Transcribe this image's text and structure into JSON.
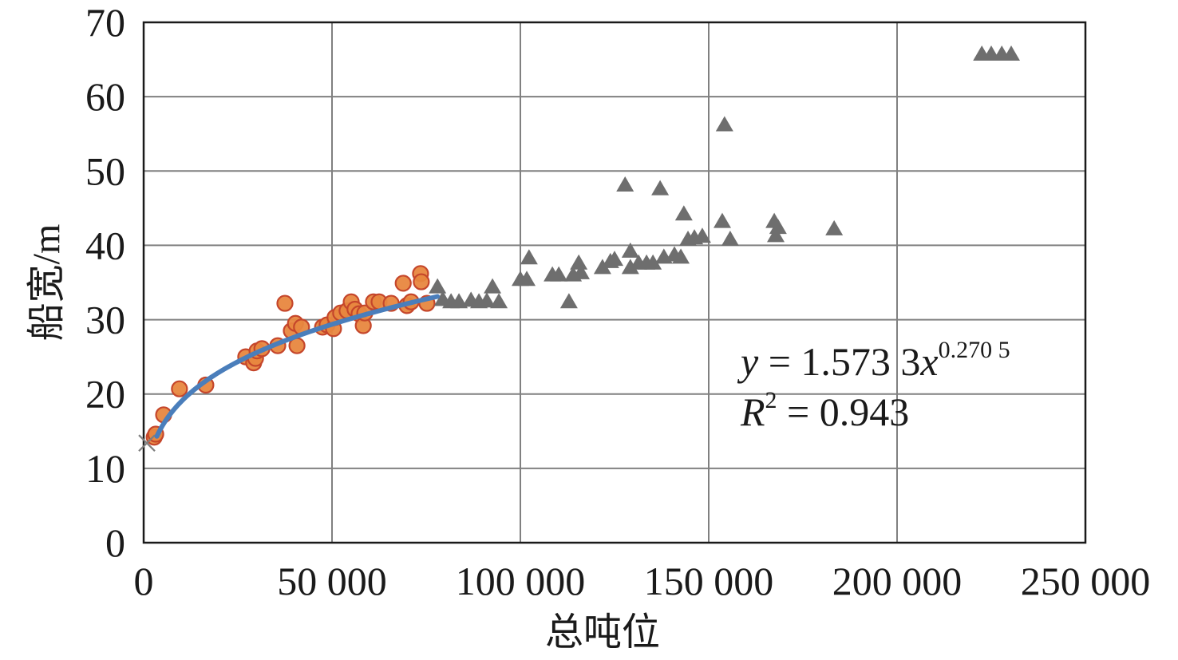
{
  "chart_data": {
    "type": "scatter",
    "xlabel": "总吨位",
    "ylabel": "船宽/m",
    "xlim": [
      0,
      250000
    ],
    "ylim": [
      0,
      70
    ],
    "x_ticks": [
      0,
      50000,
      100000,
      150000,
      200000,
      250000
    ],
    "x_tick_labels": [
      "0",
      "50 000",
      "100 000",
      "150 000",
      "200 000",
      "250 000"
    ],
    "y_ticks": [
      0,
      10,
      20,
      30,
      40,
      50,
      60,
      70
    ],
    "y_tick_labels": [
      "0",
      "10",
      "20",
      "30",
      "40",
      "50",
      "60",
      "70"
    ],
    "grid": true,
    "grid_color": "#808080",
    "series": [
      {
        "marker": "circle",
        "color": "#E8873F",
        "edge_color": "#C5462B",
        "points": [
          [
            2800,
            14.2
          ],
          [
            3200,
            14.6
          ],
          [
            5300,
            17.2
          ],
          [
            9500,
            20.7
          ],
          [
            16500,
            21.2
          ],
          [
            27100,
            25.0
          ],
          [
            29200,
            24.2
          ],
          [
            29700,
            24.8
          ],
          [
            30100,
            25.8
          ],
          [
            31400,
            26.1
          ],
          [
            35600,
            26.5
          ],
          [
            37500,
            32.2
          ],
          [
            39200,
            28.5
          ],
          [
            40300,
            29.5
          ],
          [
            40700,
            26.5
          ],
          [
            41900,
            29.0
          ],
          [
            47500,
            29.0
          ],
          [
            48700,
            29.3
          ],
          [
            50400,
            28.8
          ],
          [
            50800,
            30.3
          ],
          [
            52300,
            30.9
          ],
          [
            54000,
            31.2
          ],
          [
            55100,
            32.4
          ],
          [
            56100,
            31.4
          ],
          [
            57200,
            30.8
          ],
          [
            58300,
            29.2
          ],
          [
            58700,
            30.9
          ],
          [
            61000,
            32.4
          ],
          [
            62500,
            32.4
          ],
          [
            65700,
            32.2
          ],
          [
            68900,
            34.9
          ],
          [
            69900,
            31.9
          ],
          [
            71000,
            32.4
          ],
          [
            73500,
            36.2
          ],
          [
            73700,
            35.1
          ],
          [
            75200,
            32.2
          ]
        ]
      },
      {
        "marker": "triangle",
        "color": "#6E6E6E",
        "points": [
          [
            78000,
            34.4
          ],
          [
            79400,
            32.7
          ],
          [
            81600,
            32.4
          ],
          [
            83700,
            32.4
          ],
          [
            86900,
            32.6
          ],
          [
            89000,
            32.4
          ],
          [
            91100,
            32.5
          ],
          [
            92600,
            34.4
          ],
          [
            94300,
            32.4
          ],
          [
            100000,
            35.4
          ],
          [
            101700,
            35.4
          ],
          [
            102300,
            38.3
          ],
          [
            108500,
            36.0
          ],
          [
            110200,
            36.0
          ],
          [
            112900,
            32.4
          ],
          [
            114000,
            36.0
          ],
          [
            115500,
            37.6
          ],
          [
            116100,
            36.3
          ],
          [
            121800,
            37.0
          ],
          [
            123900,
            37.8
          ],
          [
            125000,
            38.1
          ],
          [
            127800,
            48.1
          ],
          [
            129200,
            39.2
          ],
          [
            129200,
            37.0
          ],
          [
            131400,
            37.6
          ],
          [
            133500,
            37.6
          ],
          [
            135200,
            37.6
          ],
          [
            137100,
            47.6
          ],
          [
            138100,
            38.4
          ],
          [
            140900,
            38.7
          ],
          [
            142600,
            38.4
          ],
          [
            143400,
            44.2
          ],
          [
            144500,
            40.8
          ],
          [
            146200,
            41.0
          ],
          [
            148300,
            41.2
          ],
          [
            153600,
            43.2
          ],
          [
            154200,
            56.2
          ],
          [
            155700,
            40.8
          ],
          [
            167400,
            43.2
          ],
          [
            167800,
            41.3
          ],
          [
            168400,
            42.4
          ],
          [
            183300,
            42.2
          ],
          [
            222500,
            65.7
          ],
          [
            225000,
            65.7
          ],
          [
            227800,
            65.7
          ],
          [
            230300,
            65.7
          ]
        ]
      },
      {
        "marker": "x",
        "color": "#7F7F7F",
        "points": [
          [
            850,
            13.4
          ]
        ]
      }
    ],
    "fit": {
      "type": "power",
      "a": 1.5733,
      "b": 0.2705,
      "x_range": [
        3500,
        78000
      ],
      "color": "#4A7EBB"
    },
    "annotation": {
      "equation": {
        "lhs": "y",
        "rhs": " = 1.573 3",
        "var": "x",
        "exp": "0.270 5"
      },
      "r2": {
        "sym": "R",
        "exp": "2",
        "rhs": " = 0.943"
      }
    }
  }
}
